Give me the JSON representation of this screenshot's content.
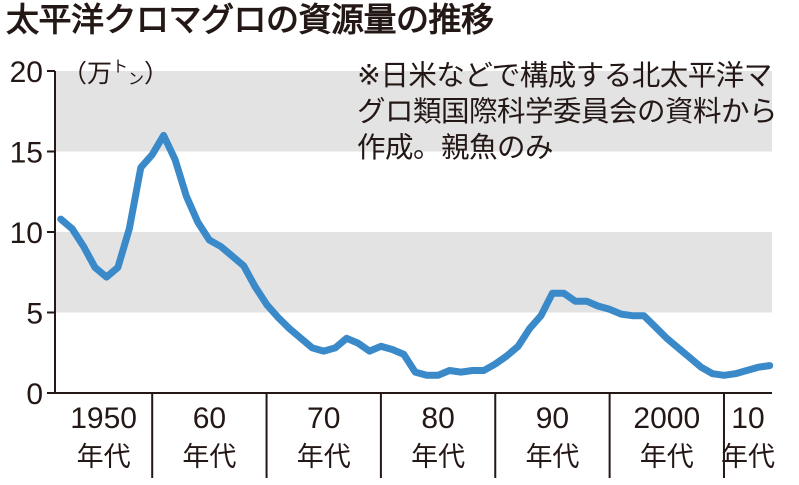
{
  "chart_data": {
    "type": "line",
    "title": "太平洋クロマグロの資源量の推移",
    "subtitle": "※日米などで構成する北太平洋マグロ類国際科学委員会の資料から作成。親魚のみ",
    "ylabel": "（万トン）",
    "ylim": [
      0,
      20
    ],
    "yticks": [
      0,
      5,
      10,
      15,
      20
    ],
    "grid": "alternating gray bands 5–10 and 15–20",
    "line_color": "#3a89c9",
    "band_color": "#e3e3e4",
    "xlim": [
      1951.5,
      2014.2
    ],
    "x_groups": [
      {
        "line1": "1950",
        "line2": "年代",
        "start": 1951.5,
        "end": 1960
      },
      {
        "line1": "60",
        "line2": "年代",
        "start": 1960,
        "end": 1970
      },
      {
        "line1": "70",
        "line2": "年代",
        "start": 1970,
        "end": 1980
      },
      {
        "line1": "80",
        "line2": "年代",
        "start": 1980,
        "end": 1990
      },
      {
        "line1": "90",
        "line2": "年代",
        "start": 1990,
        "end": 2000
      },
      {
        "line1": "2000",
        "line2": "年代",
        "start": 2000,
        "end": 2010
      },
      {
        "line1": "10",
        "line2": "年代",
        "start": 2010,
        "end": 2014.2
      }
    ],
    "series": [
      {
        "x": [
          1952,
          1953,
          1954,
          1955,
          1956,
          1957,
          1958,
          1959,
          1960,
          1961,
          1962,
          1963,
          1964,
          1965,
          1966,
          1967,
          1968,
          1969,
          1970,
          1971,
          1972,
          1973,
          1974,
          1975,
          1976,
          1977,
          1978,
          1979,
          1980,
          1981,
          1982,
          1983,
          1984,
          1985,
          1986,
          1987,
          1988,
          1989,
          1990,
          1991,
          1992,
          1993,
          1994,
          1995,
          1996,
          1997,
          1998,
          1999,
          2000,
          2001,
          2002,
          2003,
          2004,
          2005,
          2006,
          2007,
          2008,
          2009,
          2010,
          2011,
          2012,
          2013,
          2014
        ],
        "values": [
          10.8,
          10.2,
          9.1,
          7.8,
          7.2,
          7.8,
          10.2,
          14.0,
          14.8,
          16.0,
          14.5,
          12.2,
          10.6,
          9.5,
          9.1,
          8.5,
          7.9,
          6.6,
          5.5,
          4.7,
          4.0,
          3.4,
          2.8,
          2.6,
          2.8,
          3.4,
          3.1,
          2.6,
          2.9,
          2.7,
          2.4,
          1.3,
          1.1,
          1.1,
          1.4,
          1.3,
          1.4,
          1.4,
          1.8,
          2.3,
          2.9,
          4.0,
          4.8,
          6.2,
          6.2,
          5.7,
          5.7,
          5.4,
          5.2,
          4.9,
          4.8,
          4.8,
          4.1,
          3.4,
          2.8,
          2.2,
          1.6,
          1.2,
          1.1,
          1.2,
          1.4,
          1.6,
          1.7
        ]
      }
    ]
  }
}
